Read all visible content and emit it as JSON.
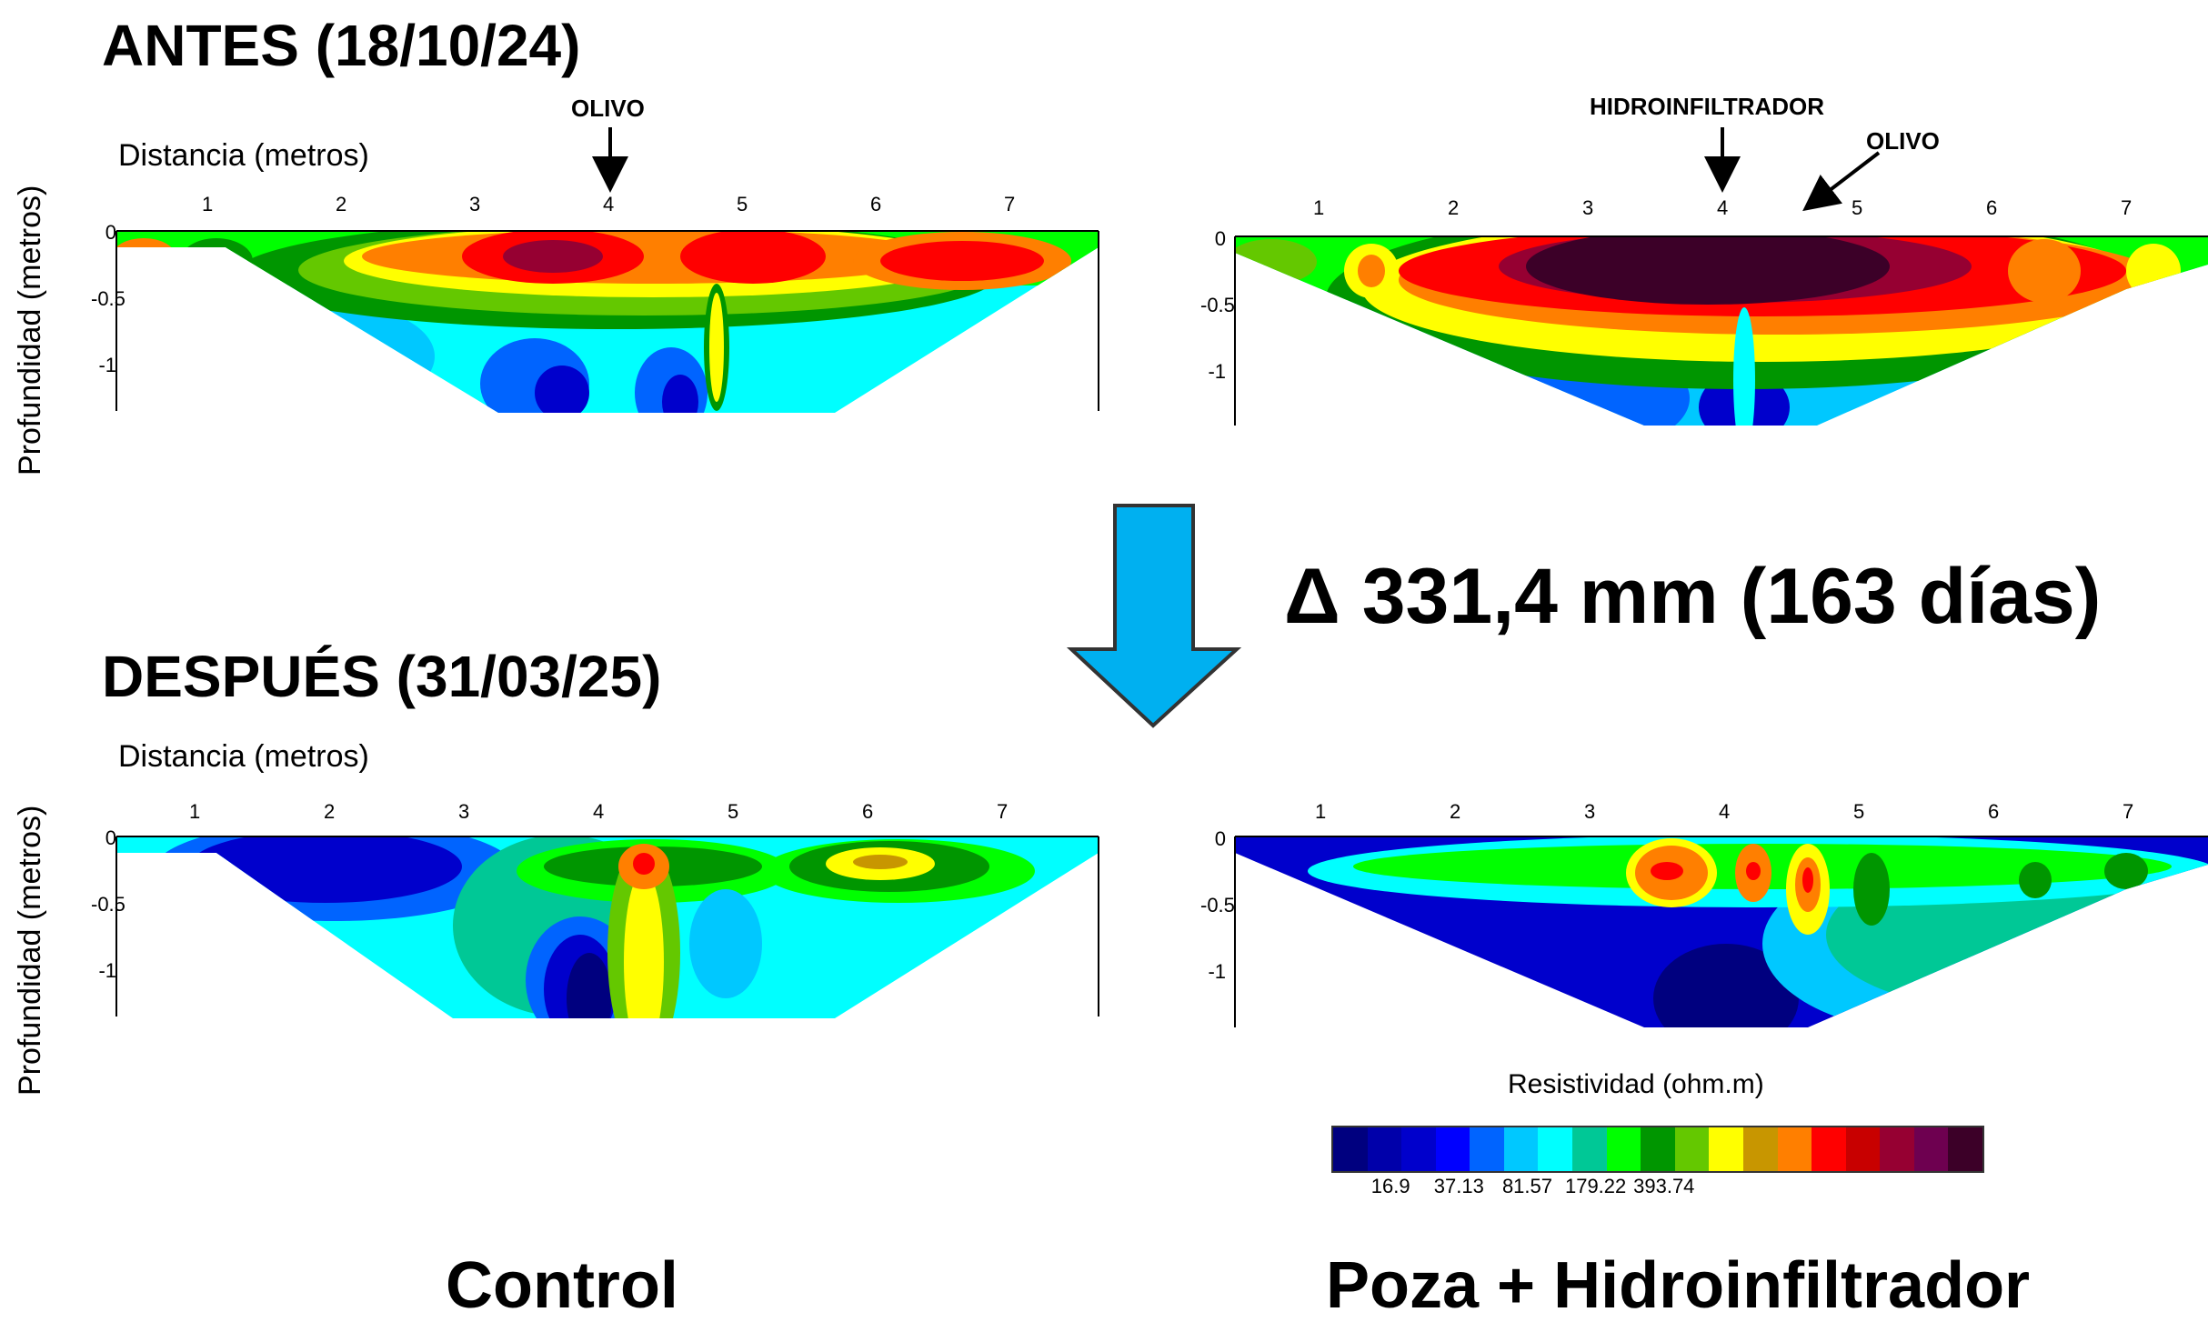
{
  "labels": {
    "before": "ANTES (18/10/24)",
    "after": "DESPUÉS (31/03/25)",
    "delta": "Δ 331,4 mm (163 días)",
    "control": "Control",
    "treatment": "Poza + Hidroinfiltrador",
    "distance_axis": "Distancia (metros)",
    "depth_axis": "Profundidad (metros)",
    "olivo": "OLIVO",
    "hidroinfiltrador": "HIDROINFILTRADOR",
    "scale_title": "Resistividad (ohm.m)"
  },
  "x_ticks": [
    "1",
    "2",
    "3",
    "4",
    "5",
    "6",
    "7"
  ],
  "y_ticks": [
    "0",
    "-0.5",
    "-1"
  ],
  "color_scale": {
    "colors": [
      "#00007f",
      "#0000aa",
      "#0000cc",
      "#0000ff",
      "#0064ff",
      "#00c8ff",
      "#00ffff",
      "#00c896",
      "#00ff00",
      "#009600",
      "#64c800",
      "#ffff00",
      "#c89600",
      "#ff7f00",
      "#ff0000",
      "#c80000",
      "#960032",
      "#6e0050",
      "#3c0028"
    ],
    "labels": [
      "16.9",
      "37.13",
      "81.57",
      "179.22",
      "393.74"
    ],
    "label_after_index": [
      2,
      4,
      6,
      8,
      10
    ]
  },
  "accent": {
    "arrow": "#00b0f0"
  },
  "panels": [
    {
      "id": "before-control",
      "description": "Control before: shallow orange/red zones near surface, blue low zones below"
    },
    {
      "id": "before-treatment",
      "description": "Treatment before: strong high-resistivity band"
    },
    {
      "id": "after-control",
      "description": "Control after: mostly blue/cyan/green"
    },
    {
      "id": "after-treatment",
      "description": "Treatment after: mostly blue, few orange pockets"
    }
  ]
}
